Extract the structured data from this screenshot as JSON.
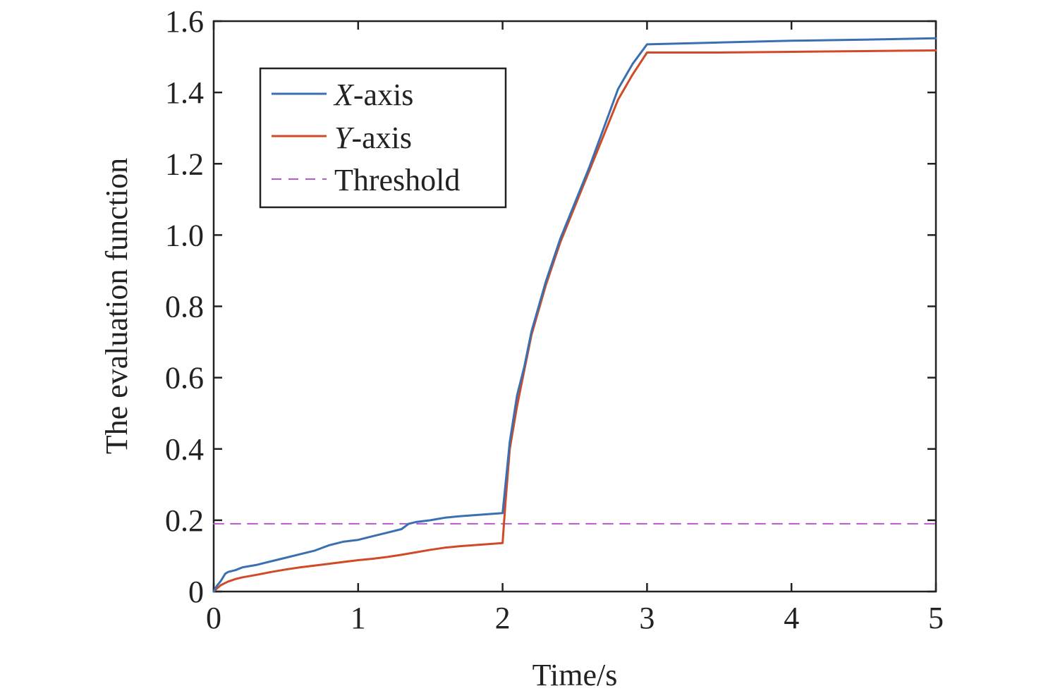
{
  "chart_data": {
    "type": "line",
    "title": "",
    "xlabel": "Time/s",
    "ylabel": "The evaluation function",
    "xlim": [
      0,
      5
    ],
    "ylim": [
      0,
      1.6
    ],
    "xticks": [
      0,
      1,
      2,
      3,
      4,
      5
    ],
    "xtick_labels": [
      "0",
      "1",
      "2",
      "3",
      "4",
      "5"
    ],
    "yticks": [
      0,
      0.2,
      0.4,
      0.6,
      0.8,
      1.0,
      1.2,
      1.4,
      1.6
    ],
    "ytick_labels": [
      "0",
      "0.2",
      "0.4",
      "0.6",
      "0.8",
      "1.0",
      "1.2",
      "1.4",
      "1.6"
    ],
    "grid": false,
    "legend_position": "top-left",
    "series": [
      {
        "name": "X-axis",
        "legend_italic": "X",
        "legend_rest": "-axis",
        "color": "#3a6fb0",
        "style": "solid",
        "x": [
          0,
          0.02,
          0.05,
          0.08,
          0.1,
          0.15,
          0.2,
          0.3,
          0.4,
          0.5,
          0.6,
          0.7,
          0.8,
          0.9,
          1.0,
          1.1,
          1.2,
          1.3,
          1.35,
          1.4,
          1.5,
          1.6,
          1.7,
          1.8,
          1.9,
          2.0,
          2.02,
          2.05,
          2.1,
          2.15,
          2.2,
          2.3,
          2.4,
          2.5,
          2.6,
          2.7,
          2.8,
          2.9,
          3.0,
          3.5,
          4.0,
          4.5,
          5.0
        ],
        "y": [
          0,
          0.015,
          0.03,
          0.05,
          0.055,
          0.06,
          0.068,
          0.075,
          0.085,
          0.095,
          0.105,
          0.115,
          0.13,
          0.14,
          0.145,
          0.155,
          0.165,
          0.175,
          0.19,
          0.195,
          0.2,
          0.207,
          0.211,
          0.214,
          0.217,
          0.22,
          0.3,
          0.42,
          0.55,
          0.63,
          0.73,
          0.87,
          0.99,
          1.09,
          1.19,
          1.3,
          1.41,
          1.48,
          1.535,
          1.54,
          1.545,
          1.548,
          1.552
        ]
      },
      {
        "name": "Y-axis",
        "legend_italic": "Y",
        "legend_rest": "-axis",
        "color": "#d04a27",
        "style": "solid",
        "x": [
          0,
          0.02,
          0.05,
          0.1,
          0.15,
          0.2,
          0.3,
          0.4,
          0.5,
          0.6,
          0.7,
          0.8,
          0.9,
          1.0,
          1.1,
          1.2,
          1.3,
          1.4,
          1.5,
          1.6,
          1.7,
          1.8,
          1.9,
          2.0,
          2.02,
          2.05,
          2.1,
          2.15,
          2.2,
          2.3,
          2.4,
          2.5,
          2.6,
          2.7,
          2.8,
          2.9,
          3.0,
          3.5,
          4.0,
          4.5,
          5.0
        ],
        "y": [
          0,
          0.008,
          0.018,
          0.028,
          0.035,
          0.04,
          0.047,
          0.055,
          0.062,
          0.068,
          0.073,
          0.078,
          0.083,
          0.088,
          0.092,
          0.097,
          0.103,
          0.11,
          0.117,
          0.123,
          0.127,
          0.13,
          0.133,
          0.136,
          0.25,
          0.4,
          0.52,
          0.62,
          0.72,
          0.86,
          0.98,
          1.08,
          1.18,
          1.28,
          1.38,
          1.45,
          1.512,
          1.512,
          1.514,
          1.516,
          1.518
        ]
      },
      {
        "name": "Threshold",
        "color": "#b559c9",
        "style": "dashed",
        "x": [
          0,
          5
        ],
        "y": [
          0.19,
          0.19
        ]
      }
    ]
  }
}
